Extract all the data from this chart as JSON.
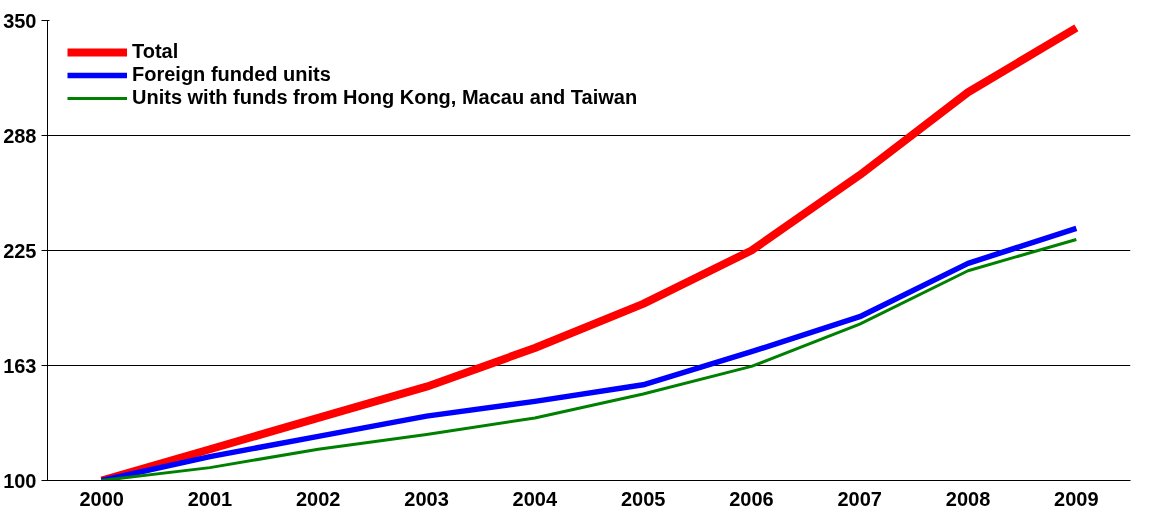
{
  "chart_data": {
    "type": "line",
    "categories": [
      "2000",
      "2001",
      "2002",
      "2003",
      "2004",
      "2005",
      "2006",
      "2007",
      "2008",
      "2009"
    ],
    "series": [
      {
        "name": "Total",
        "color": "#ff0000",
        "values": [
          100,
          117,
          134,
          151,
          172,
          196,
          225,
          266,
          311,
          346
        ]
      },
      {
        "name": "Foreign funded units",
        "color": "#0000ff",
        "values": [
          100,
          113,
          124,
          135,
          143,
          152,
          170,
          189,
          218,
          237
        ]
      },
      {
        "name": "Units with funds from Hong Kong, Macau and Taiwan",
        "color": "#008000",
        "values": [
          100,
          107,
          117,
          125,
          134,
          147,
          162,
          185,
          214,
          231
        ]
      }
    ],
    "ylim": [
      100,
      350
    ],
    "yticks": [
      100,
      {
        "value": 162.5,
        "label": "163"
      },
      225,
      {
        "value": 287.5,
        "label": "288"
      },
      350
    ],
    "grid": "y",
    "legend": "top left",
    "marker": "none",
    "line_style": "solid"
  }
}
